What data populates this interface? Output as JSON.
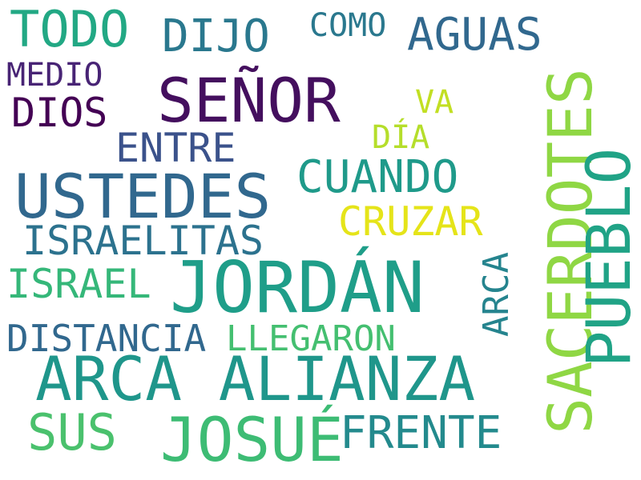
{
  "word_cloud": {
    "words": [
      {
        "text": "TODO",
        "color": "#22a884"
      },
      {
        "text": "DIJO",
        "color": "#2a788e"
      },
      {
        "text": "COMO",
        "color": "#2a788e"
      },
      {
        "text": "AGUAS",
        "color": "#31688e"
      },
      {
        "text": "MEDIO",
        "color": "#482475"
      },
      {
        "text": "SEÑOR",
        "color": "#440f5e"
      },
      {
        "text": "DIOS",
        "color": "#440154"
      },
      {
        "text": "VA",
        "color": "#c2df23"
      },
      {
        "text": "DÍA",
        "color": "#b5de2b"
      },
      {
        "text": "ENTRE",
        "color": "#3b528b"
      },
      {
        "text": "USTEDES",
        "color": "#31688e"
      },
      {
        "text": "CUANDO",
        "color": "#1f9a8a"
      },
      {
        "text": "CRUZAR",
        "color": "#e5e419"
      },
      {
        "text": "ISRAELITAS",
        "color": "#2c728e"
      },
      {
        "text": "SACERDOTES",
        "color": "#8fd744"
      },
      {
        "text": "PUEBLO",
        "color": "#20a386"
      },
      {
        "text": "ISRAEL",
        "color": "#35b779"
      },
      {
        "text": "JORDÁN",
        "color": "#1f9e89"
      },
      {
        "text": "ARCA",
        "color": "#25848e"
      },
      {
        "text": "DISTANCIA",
        "color": "#31688e"
      },
      {
        "text": "LLEGARON",
        "color": "#44bf70"
      },
      {
        "text": "ARCA ALIANZA",
        "color": "#1f968b"
      },
      {
        "text": "SUS",
        "color": "#4ac16d"
      },
      {
        "text": "JOSUÉ",
        "color": "#3dbc74"
      },
      {
        "text": "FRENTE",
        "color": "#238a8d"
      }
    ]
  }
}
